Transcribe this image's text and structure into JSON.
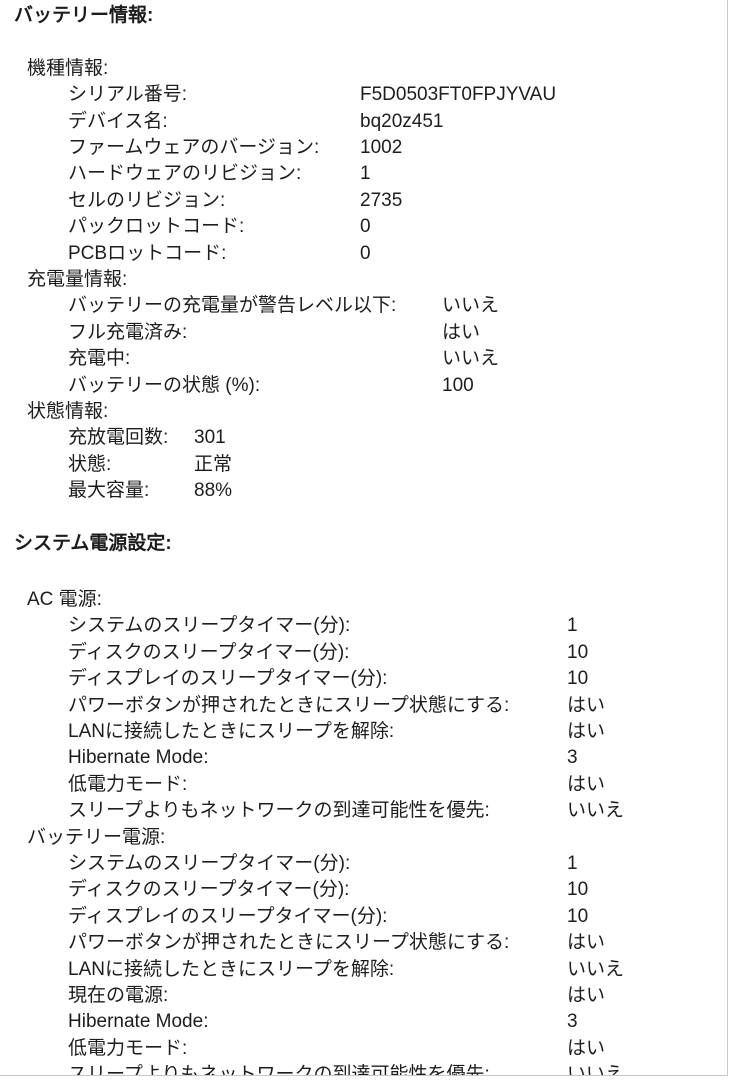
{
  "battery": {
    "title": "バッテリー情報:",
    "model": {
      "title": "機種情報:",
      "rows": [
        {
          "k": "シリアル番号:",
          "v": "F5D0503FT0FPJYVAU"
        },
        {
          "k": "デバイス名:",
          "v": "bq20z451"
        },
        {
          "k": "ファームウェアのバージョン:",
          "v": "1002"
        },
        {
          "k": "ハードウェアのリビジョン:",
          "v": "1"
        },
        {
          "k": "セルのリビジョン:",
          "v": "2735"
        },
        {
          "k": "パックロットコード:",
          "v": "0"
        },
        {
          "k": "PCBロットコード:",
          "v": "0"
        }
      ]
    },
    "charge": {
      "title": "充電量情報:",
      "rows": [
        {
          "k": "バッテリーの充電量が警告レベル以下:",
          "v": "いいえ"
        },
        {
          "k": "フル充電済み:",
          "v": "はい"
        },
        {
          "k": "充電中:",
          "v": "いいえ"
        },
        {
          "k": "バッテリーの状態 (%):",
          "v": "100"
        }
      ]
    },
    "health": {
      "title": "状態情報:",
      "rows": [
        {
          "k": "充放電回数:",
          "v": "301"
        },
        {
          "k": "状態:",
          "v": "正常"
        },
        {
          "k": "最大容量:",
          "v": "88%"
        }
      ]
    }
  },
  "power": {
    "title": "システム電源設定:",
    "ac": {
      "title": "AC 電源:",
      "rows": [
        {
          "k": "システムのスリープタイマー(分):",
          "v": "1"
        },
        {
          "k": "ディスクのスリープタイマー(分):",
          "v": "10"
        },
        {
          "k": "ディスプレイのスリープタイマー(分):",
          "v": "10"
        },
        {
          "k": "パワーボタンが押されたときにスリープ状態にする:",
          "v": "はい"
        },
        {
          "k": "LANに接続したときにスリープを解除:",
          "v": "はい"
        },
        {
          "k": "Hibernate Mode:",
          "v": "3"
        },
        {
          "k": "低電力モード:",
          "v": "はい"
        },
        {
          "k": "スリープよりもネットワークの到達可能性を優先:",
          "v": "いいえ"
        }
      ]
    },
    "battery_power": {
      "title": "バッテリー電源:",
      "rows": [
        {
          "k": "システムのスリープタイマー(分):",
          "v": "1"
        },
        {
          "k": "ディスクのスリープタイマー(分):",
          "v": "10"
        },
        {
          "k": "ディスプレイのスリープタイマー(分):",
          "v": "10"
        },
        {
          "k": "パワーボタンが押されたときにスリープ状態にする:",
          "v": "はい"
        },
        {
          "k": "LANに接続したときにスリープを解除:",
          "v": "いいえ"
        },
        {
          "k": "現在の電源:",
          "v": "はい"
        },
        {
          "k": "Hibernate Mode:",
          "v": "3"
        },
        {
          "k": "低電力モード:",
          "v": "はい"
        },
        {
          "k": "スリープよりもネットワークの到達可能性を優先:",
          "v": "いいえ"
        }
      ]
    }
  }
}
